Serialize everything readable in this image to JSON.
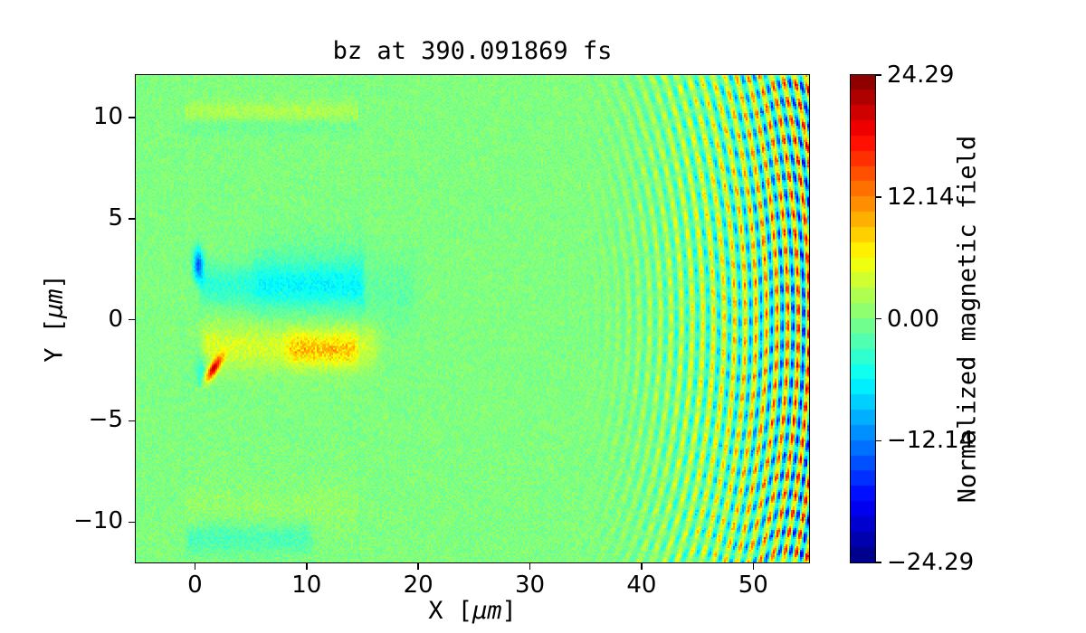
{
  "chart_data": {
    "type": "heatmap",
    "title": "bz at 390.091869 fs",
    "time_fs": 390.091869,
    "field_name": "bz",
    "xlabel": "X [μm]",
    "ylabel": "Y [μm]",
    "xlabel_parts": {
      "prefix": "X [",
      "unit": "μm",
      "suffix": "]"
    },
    "ylabel_parts": {
      "prefix": "Y [",
      "unit": "μm",
      "suffix": "]"
    },
    "xlim": [
      -5.3,
      55.0
    ],
    "ylim": [
      -12.0,
      12.1
    ],
    "xticks": [
      0,
      10,
      20,
      30,
      40,
      50
    ],
    "yticks": [
      10,
      5,
      0,
      -5,
      -10
    ],
    "grid": false,
    "colorbar": {
      "label": "Normalized magnetic field",
      "ticks": [
        "24.29",
        "12.14",
        "0.00",
        "−12.14",
        "−24.29"
      ],
      "tick_values": [
        24.29,
        12.14,
        0.0,
        -12.14,
        -24.29
      ],
      "vmin": -24.29,
      "vmax": 24.29,
      "colormap": "jet",
      "discrete_steps": 32,
      "position": "right"
    },
    "field": {
      "description": "2D particle-in-cell simulation snapshot of normalized bz: noisy green zero-field background, a plasma channel with negative (cyan) lobe above and positive (yellow/orange) lobe below the axis inside the target (x 0-15), a deep blue spot and an intense red spot near x=0-2, and diverging circular laser wavefront stripes growing in amplitude toward the right edge",
      "background_value": 0,
      "noise_amplitude": 1.3,
      "target_region": {
        "x": [
          -1.0,
          14.7
        ],
        "y": [
          -11.9,
          11.9
        ],
        "edge_band_y": 10.3,
        "edge_band_amp": 2.2,
        "bottom_teal_y": -10.8,
        "bottom_teal_amp": -2.6,
        "bottom_speckle_y": -9.3,
        "bottom_speckle_amp": 1.1
      },
      "channel_positive": {
        "y_center": -1.3,
        "sigma_y": 0.8,
        "x_range": [
          0.3,
          16.5
        ],
        "amplitude": 4.0,
        "core": {
          "x_range": [
            8.0,
            14.6
          ],
          "y_center": -1.5,
          "amplitude": 5.0
        }
      },
      "channel_negative": {
        "y_center": 1.7,
        "sigma_y": 0.72,
        "x_range": [
          0.3,
          14.9
        ],
        "amplitude": -4.0,
        "halo": {
          "x_range": [
            5.0,
            15.2
          ],
          "sigma_y": 1.4,
          "amplitude": -2.2
        },
        "extension": {
          "x_range": [
            14.8,
            20.0
          ],
          "amplitude": -1.6
        }
      },
      "blue_spot": {
        "x": 0.3,
        "y": 2.7,
        "rx": 0.3,
        "ry": 0.55,
        "amplitude": -14
      },
      "teal_smudge": {
        "x": 0.55,
        "y": -2.5,
        "rx": 0.33,
        "ry": 0.6,
        "amplitude": -5
      },
      "red_spot": {
        "x": 1.7,
        "y": -2.4,
        "length": 1.3,
        "width": 0.42,
        "angle_deg": 38,
        "amplitude": 19
      },
      "waves": {
        "center_x": 23,
        "center_y": 0,
        "wavelength": 0.95,
        "phase": 0.57,
        "onset_x": 33,
        "max_amplitude": 19,
        "envelope_exponent": 1.7
      }
    }
  }
}
